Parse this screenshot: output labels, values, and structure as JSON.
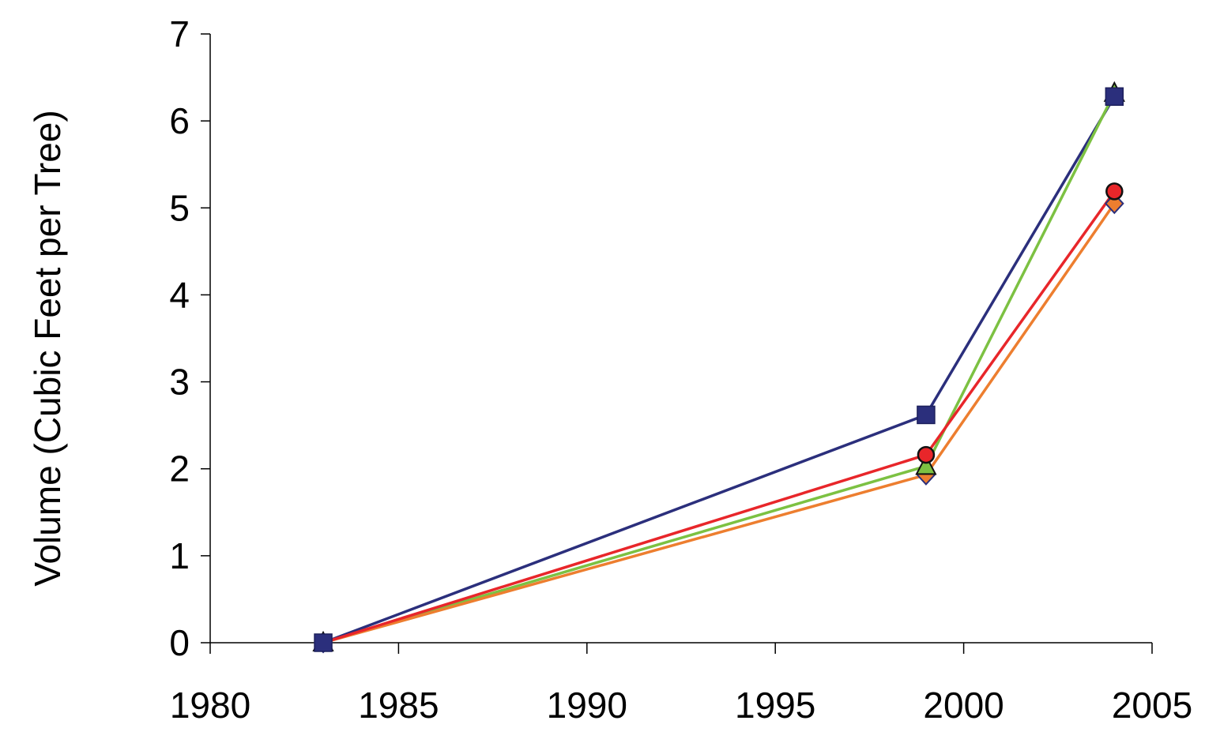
{
  "chart_data": {
    "type": "line",
    "title": "",
    "xlabel": "",
    "ylabel": "Volume (Cubic Feet per Tree)",
    "xlim": [
      1980,
      2005
    ],
    "ylim": [
      0,
      7
    ],
    "x_ticks": [
      "1980",
      "1985",
      "1990",
      "1995",
      "2000",
      "2005"
    ],
    "y_ticks": [
      "0",
      "1",
      "2",
      "3",
      "4",
      "5",
      "6",
      "7"
    ],
    "grid": false,
    "legend": "none",
    "series": [
      {
        "color": "#2B2F7C",
        "marker": "square",
        "points": [
          [
            1983,
            0
          ],
          [
            1999,
            2.62
          ],
          [
            2004,
            6.28
          ]
        ]
      },
      {
        "color": "#7CC142",
        "marker": "triangle",
        "points": [
          [
            1983,
            0
          ],
          [
            1999,
            2.03
          ],
          [
            2004,
            6.32
          ]
        ]
      },
      {
        "color": "#ED7E2F",
        "marker": "diamond",
        "points": [
          [
            1983,
            0
          ],
          [
            1999,
            1.93
          ],
          [
            2004,
            5.05
          ]
        ]
      },
      {
        "color": "#E8262A",
        "marker": "circle",
        "points": [
          [
            1983,
            0
          ],
          [
            1999,
            2.16
          ],
          [
            2004,
            5.19
          ]
        ]
      }
    ]
  }
}
